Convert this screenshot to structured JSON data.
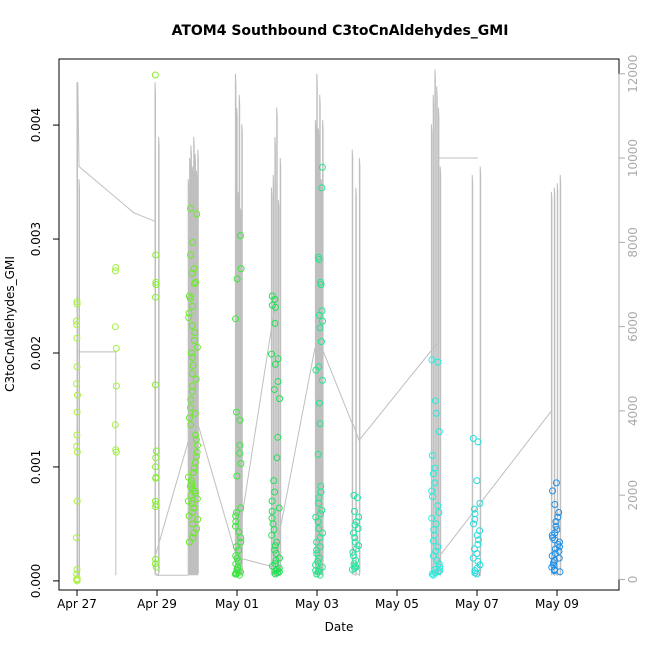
{
  "chart_data": {
    "type": "scatter",
    "title": "ATOM4 Southbound C3toCnAldehydes_GMI",
    "xlabel": "Date",
    "ylabel": "C3toCnAldehydes_GMI",
    "x_ticks": [
      "Apr 27",
      "Apr 29",
      "May 01",
      "May 03",
      "May 05",
      "May 07",
      "May 09"
    ],
    "y_ticks": [
      "0.000",
      "0.001",
      "0.002",
      "0.003",
      "0.004"
    ],
    "y2_ticks": [
      "0",
      "2000",
      "4000",
      "6000",
      "8000",
      "10000",
      "12000"
    ],
    "xlim": [
      -0.45,
      13.55
    ],
    "ylim": [
      -8e-05,
      0.00458
    ],
    "y2lim": [
      -250,
      12350
    ],
    "grid": false,
    "legend": "none",
    "series_colors": {
      "early": "#99ff33",
      "middle": "#22ee22",
      "late": "#33eeff",
      "last": "#1e90ff",
      "altitude": "#bfbfbf"
    },
    "flight_groups": [
      {
        "x": 0.0,
        "color": "#a8f040",
        "values": [
          0.00245,
          0.00243,
          0.00228,
          0.00225,
          0.00213,
          0.00188,
          0.00173,
          0.00163,
          0.00148,
          0.00128,
          0.00118,
          0.00113,
          0.0007,
          0.00038,
          0.0001,
          6e-05,
          2e-05,
          1e-05,
          0.0
        ]
      },
      {
        "x": 0.97,
        "color": "#a0f040",
        "values": [
          0.00275,
          0.00272,
          0.00223,
          0.00204,
          0.00171,
          0.00137,
          0.00115,
          0.00113
        ]
      },
      {
        "x": 1.97,
        "color": "#88ee33",
        "values": [
          0.00444,
          0.00286,
          0.00262,
          0.0026,
          0.00249,
          0.00172,
          0.00114,
          0.00108,
          0.001,
          0.00091,
          0.0009,
          0.0007,
          0.00067,
          0.00065,
          0.00019,
          0.00015,
          0.00012
        ]
      },
      {
        "x_range": [
          2.78,
          3.02
        ],
        "color": "#66ee22",
        "values": [
          0.00327,
          0.00322,
          0.00297,
          0.00286,
          0.00274,
          0.0027,
          0.00262,
          0.00261,
          0.0025,
          0.00248,
          0.00241,
          0.00235,
          0.00231,
          0.00224,
          0.00218,
          0.00211,
          0.00205,
          0.002,
          0.00196,
          0.00189,
          0.00182,
          0.00177,
          0.00171,
          0.00166,
          0.00159,
          0.00152,
          0.00147,
          0.00143,
          0.00137,
          0.00128,
          0.00124,
          0.00119,
          0.00113,
          0.00109,
          0.00104,
          0.00099,
          0.00095,
          0.00091,
          0.00088,
          0.00085,
          0.00083,
          0.00081,
          0.00079,
          0.00077,
          0.00075,
          0.00072,
          0.0007,
          0.00068,
          0.00064,
          0.0006,
          0.00057,
          0.00054,
          0.0005,
          0.00046,
          0.00042,
          0.00038,
          0.00034
        ]
      },
      {
        "x_range": [
          3.96,
          4.12
        ],
        "color": "#3ae83a",
        "values": [
          0.00303,
          0.00274,
          0.00265,
          0.0023,
          0.00148,
          0.00141,
          0.00119,
          0.00112,
          0.00103,
          0.00092,
          0.00064,
          0.0006,
          0.00057,
          0.00052,
          0.00048,
          0.00043,
          0.00038,
          0.00034,
          0.0003,
          0.00027,
          0.00022,
          0.0002,
          0.00017,
          0.00015,
          0.00012,
          0.0001,
          9e-05,
          8e-05,
          7e-05,
          6e-05,
          6e-05,
          5e-05
        ]
      },
      {
        "x_range": [
          4.86,
          5.08
        ],
        "color": "#22e055",
        "values": [
          0.0025,
          0.00247,
          0.00242,
          0.0024,
          0.00226,
          0.00199,
          0.00195,
          0.0019,
          0.00175,
          0.00168,
          0.0016,
          0.00126,
          0.00108,
          0.00088,
          0.00078,
          0.0007,
          0.00064,
          0.00061,
          0.00055,
          0.0005,
          0.00045,
          0.0004,
          0.00034,
          0.00031,
          0.00027,
          0.00024,
          0.0002,
          0.00018,
          0.00015,
          0.00013,
          0.00011,
          0.0001,
          9e-05,
          8e-05,
          7e-05,
          6e-05
        ]
      },
      {
        "x_range": [
          5.96,
          6.14
        ],
        "color": "#22e688",
        "values": [
          0.00363,
          0.00345,
          0.00284,
          0.00282,
          0.00262,
          0.0026,
          0.00237,
          0.00233,
          0.00228,
          0.00222,
          0.0021,
          0.00188,
          0.00185,
          0.00176,
          0.00156,
          0.00138,
          0.00111,
          0.00083,
          0.00078,
          0.00073,
          0.00068,
          0.00062,
          0.00059,
          0.00056,
          0.00052,
          0.00046,
          0.00042,
          0.00038,
          0.00034,
          0.0003,
          0.00027,
          0.00024,
          0.0002,
          0.00017,
          0.00014,
          0.00012,
          0.0001,
          9e-05,
          8e-05,
          6e-05,
          5e-05
        ]
      },
      {
        "x_range": [
          6.88,
          7.06
        ],
        "color": "#22e6a0",
        "values": [
          0.00075,
          0.00073,
          0.00061,
          0.00056,
          0.00052,
          0.00049,
          0.00046,
          0.00042,
          0.00038,
          0.00034,
          0.00031,
          0.00028,
          0.00025,
          0.00022,
          0.00018,
          0.00015,
          0.00013,
          0.00012,
          0.00011,
          0.0001
        ]
      },
      {
        "x_range": [
          8.86,
          9.08
        ],
        "color": "#22eedd",
        "values": [
          0.00194,
          0.00192,
          0.00158,
          0.00147,
          0.00131,
          0.0011,
          0.00099,
          0.00094,
          0.00086,
          0.00079,
          0.00074,
          0.00066,
          0.0006,
          0.00055,
          0.0005,
          0.00045,
          0.0004,
          0.00035,
          0.0003,
          0.00026,
          0.00022,
          0.00018,
          0.00015,
          0.00012,
          0.0001,
          9e-05,
          8e-05,
          7e-05,
          6e-05,
          5e-05
        ]
      },
      {
        "x_range": [
          9.88,
          10.08
        ],
        "color": "#22dddd",
        "values": [
          0.00125,
          0.00122,
          0.00088,
          0.00068,
          0.00063,
          0.00059,
          0.00054,
          0.0005,
          0.00044,
          0.0004,
          0.00036,
          0.00032,
          0.00028,
          0.00024,
          0.0002,
          0.00017,
          0.00014,
          0.00011,
          9e-05,
          7e-05,
          6e-05
        ]
      },
      {
        "x_range": [
          11.86,
          12.08
        ],
        "color": "#1e8fe8",
        "values": [
          0.00086,
          0.00079,
          0.00067,
          0.0006,
          0.00056,
          0.00052,
          0.00048,
          0.00045,
          0.00042,
          0.0004,
          0.00038,
          0.00036,
          0.00034,
          0.00032,
          0.0003,
          0.00028,
          0.00026,
          0.00024,
          0.00022,
          0.0002,
          0.00018,
          0.00016,
          0.00014,
          0.00012,
          0.0001,
          9e-05,
          8e-05
        ]
      }
    ],
    "altitude_flights": [
      {
        "x_range": [
          0.0,
          0.05
        ],
        "max": 11800,
        "spikes": [
          11800,
          9500
        ]
      },
      {
        "x_range": [
          1.95,
          2.04
        ],
        "max": 11800,
        "spikes": [
          11800,
          10500
        ]
      },
      {
        "x_range": [
          2.78,
          3.02
        ],
        "max": 10500,
        "spikes": [
          9500,
          10000,
          10300,
          9800,
          10500,
          10100,
          9700,
          10200
        ]
      },
      {
        "x_range": [
          3.96,
          4.12
        ],
        "max": 12000,
        "spikes": [
          12000,
          11200,
          9200,
          11500,
          8800,
          10800
        ]
      },
      {
        "x_range": [
          4.86,
          5.08
        ],
        "max": 11200,
        "spikes": [
          9300,
          9600,
          10500,
          11200,
          9000,
          10000
        ]
      },
      {
        "x_range": [
          5.96,
          6.14
        ],
        "max": 12000,
        "spikes": [
          10900,
          12000,
          10700,
          11500,
          9500,
          10900
        ]
      },
      {
        "x_range": [
          6.88,
          7.06
        ],
        "max": 10200,
        "spikes": [
          10200,
          9300,
          10000
        ]
      },
      {
        "x_range": [
          8.86,
          9.08
        ],
        "max": 12100,
        "spikes": [
          10800,
          11500,
          12100,
          11700,
          11200,
          9800
        ]
      },
      {
        "x_range": [
          9.88,
          10.08
        ],
        "max": 9800,
        "spikes": [
          9600,
          9800
        ]
      },
      {
        "x_range": [
          11.86,
          12.08
        ],
        "max": 9600,
        "spikes": [
          9200,
          9300,
          9400,
          9600
        ]
      }
    ],
    "altitude_transits": [
      [
        [
          0.02,
          11800
        ],
        [
          0.05,
          9800
        ],
        [
          1.42,
          8700
        ],
        [
          1.95,
          8500
        ]
      ],
      [
        [
          0.0,
          5400
        ],
        [
          0.5,
          5400
        ],
        [
          0.97,
          5400
        ],
        [
          0.97,
          100
        ]
      ],
      [
        [
          1.97,
          100
        ],
        [
          2.78,
          100
        ]
      ],
      [
        [
          1.97,
          600
        ],
        [
          3.0,
          4000
        ]
      ],
      [
        [
          3.02,
          3700
        ],
        [
          4.0,
          500
        ]
      ],
      [
        [
          3.96,
          500
        ],
        [
          5.0,
          6800
        ]
      ],
      [
        [
          4.1,
          500
        ],
        [
          4.9,
          300
        ]
      ],
      [
        [
          5.0,
          800
        ],
        [
          5.95,
          5500
        ]
      ],
      [
        [
          6.12,
          5500
        ],
        [
          6.88,
          3700
        ]
      ],
      [
        [
          6.9,
          3700
        ],
        [
          7.05,
          3300
        ]
      ],
      [
        [
          7.05,
          3300
        ],
        [
          9.0,
          5600
        ]
      ],
      [
        [
          9.05,
          10000
        ],
        [
          10.02,
          10000
        ]
      ],
      [
        [
          9.1,
          600
        ],
        [
          11.86,
          4000
        ]
      ]
    ]
  }
}
